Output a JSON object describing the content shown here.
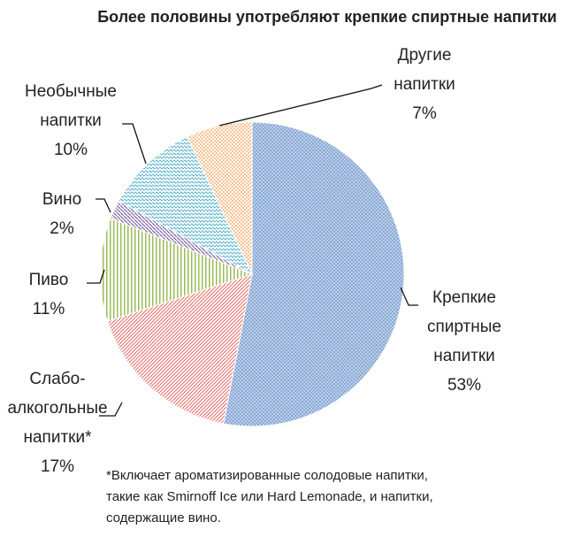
{
  "chart_data": {
    "type": "pie",
    "title": "Более половины употребляют крепкие спиртные напитки",
    "categories": [
      "Крепкие спиртные напитки",
      "Слабо-алкогольные напитки*",
      "Пиво",
      "Вино",
      "Необычные напитки",
      "Другие напитки"
    ],
    "values": [
      53,
      17,
      11,
      2,
      10,
      7
    ],
    "value_labels": [
      "53%",
      "17%",
      "11%",
      "2%",
      "10%",
      "7%"
    ],
    "colors": [
      "#4f81bd",
      "#e46c66",
      "#9bbb59",
      "#8064a2",
      "#4bacc6",
      "#f79646"
    ],
    "footnote": "*Включает ароматизированные солодовые напитки, такие как Smirnoff Ice или Hard Lemonade, и напитки, содержащие вино."
  }
}
